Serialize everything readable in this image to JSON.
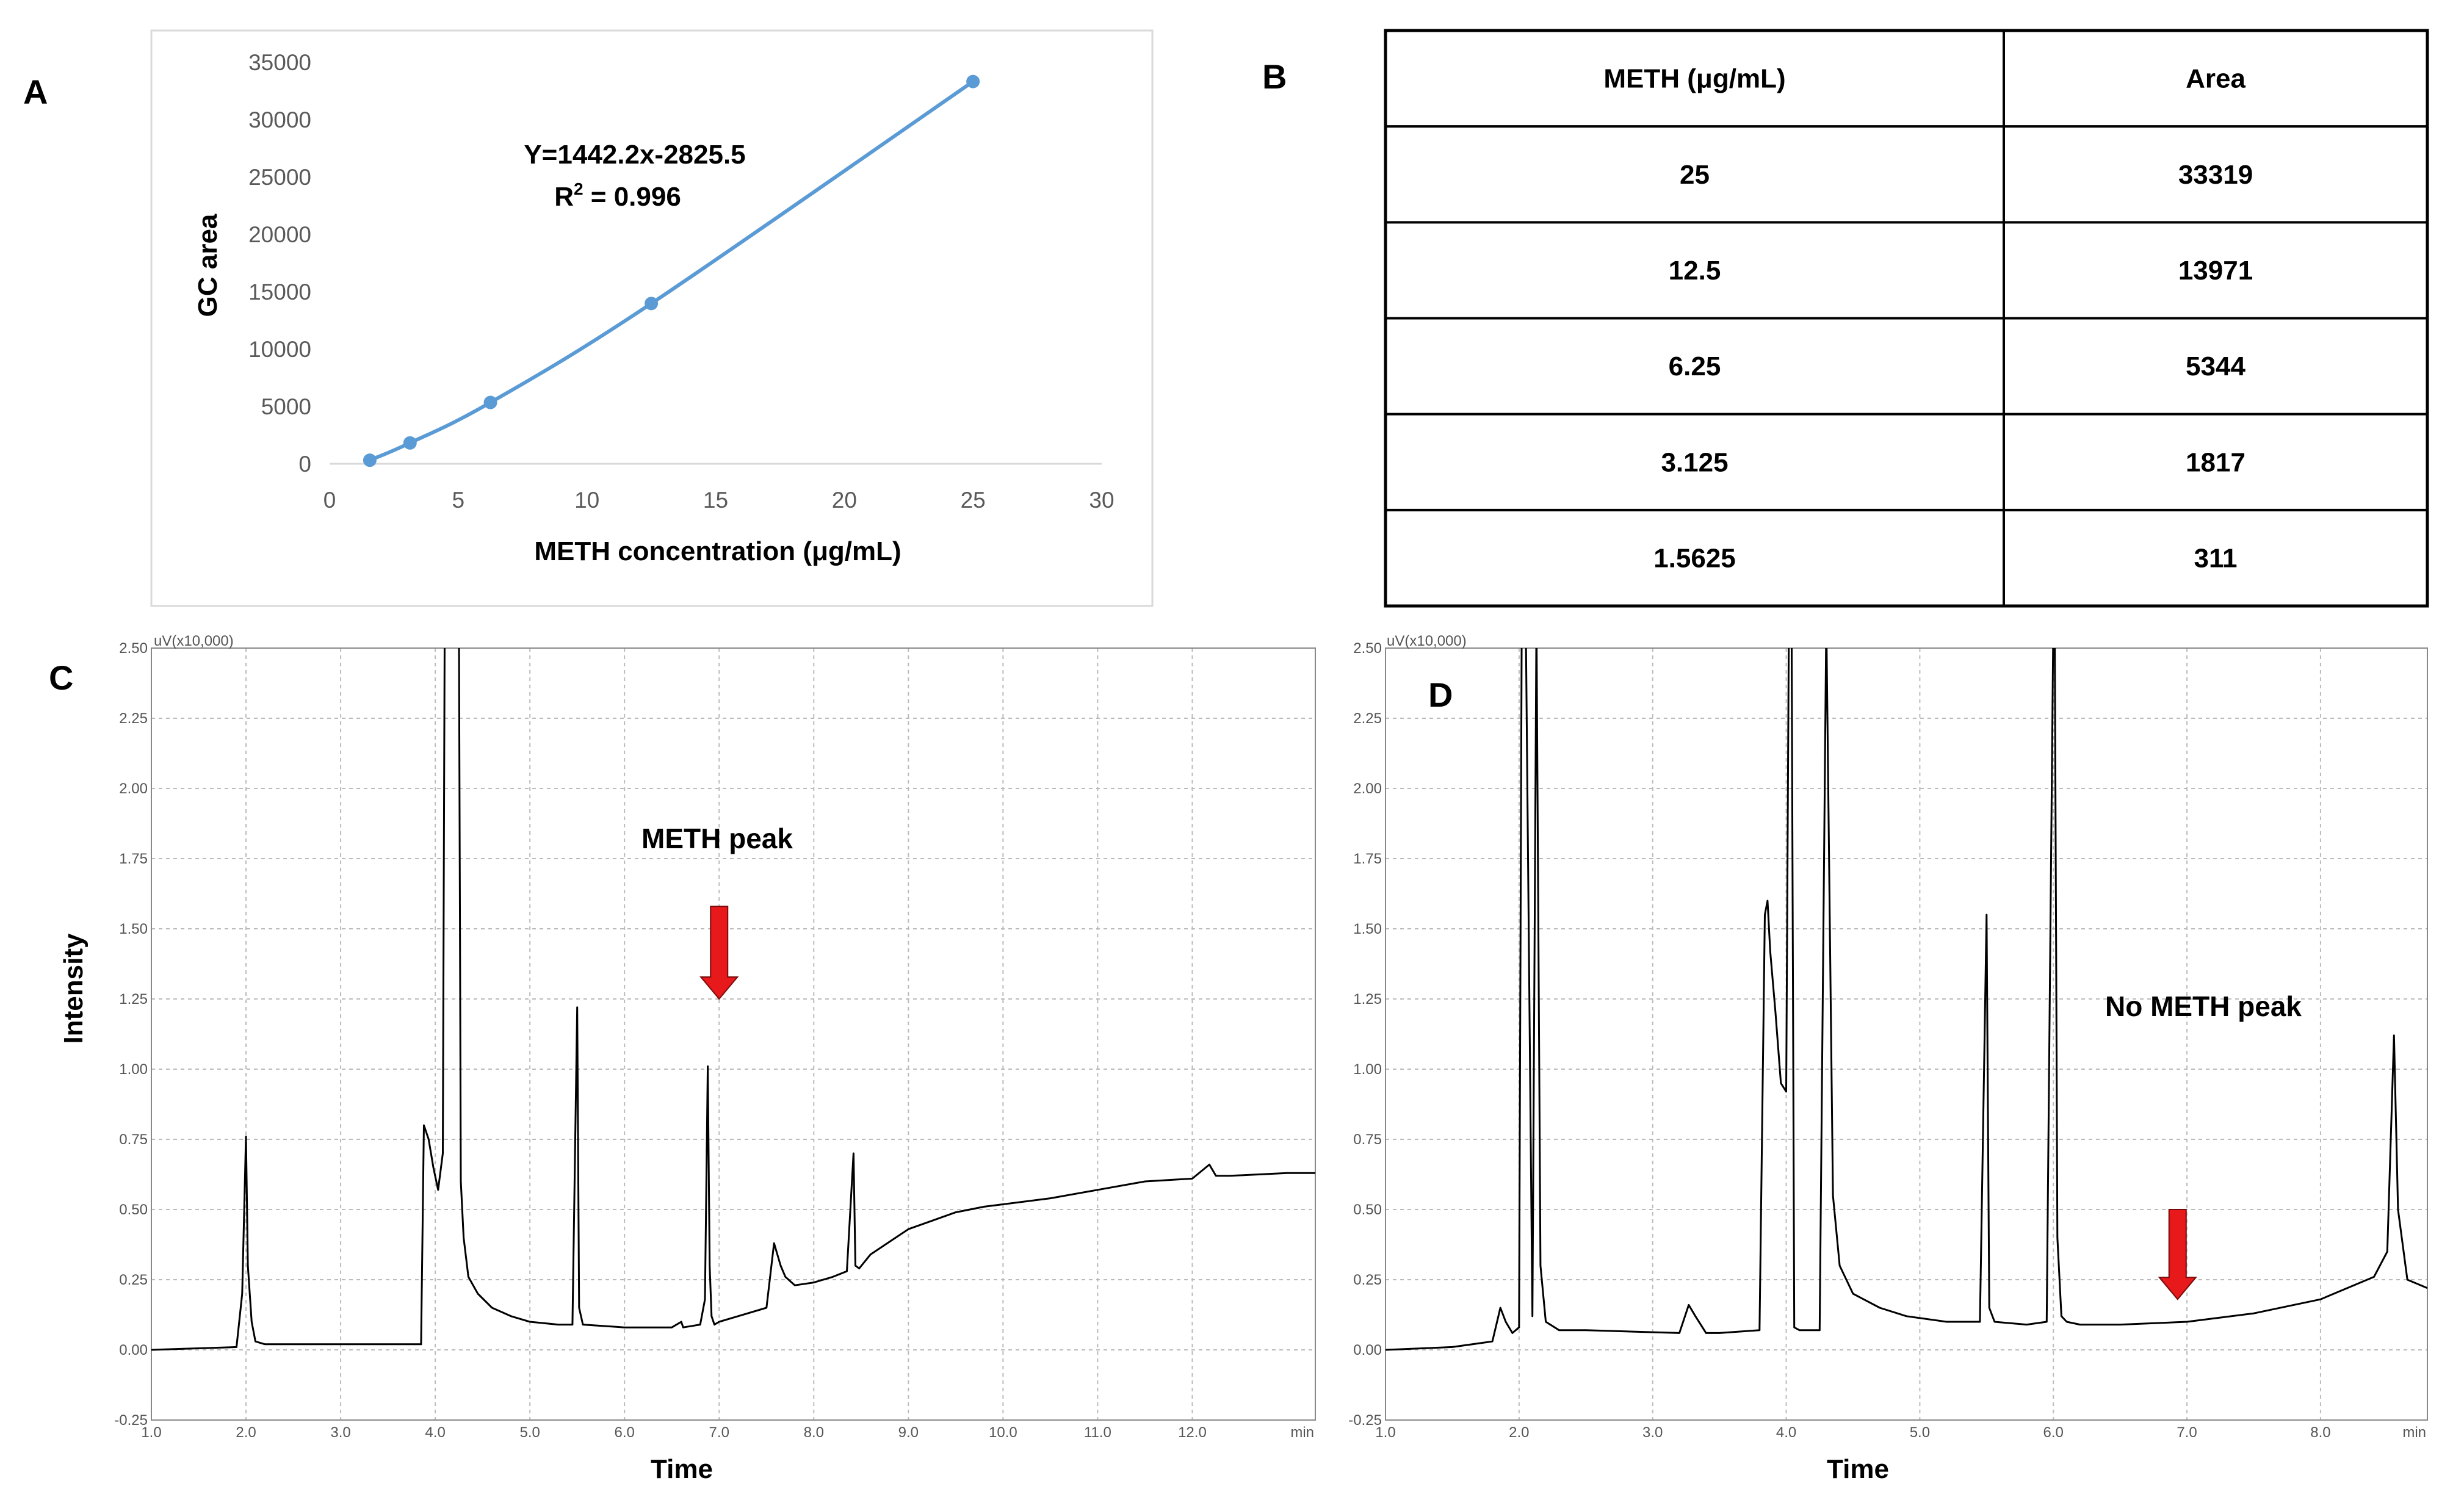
{
  "panel_labels": {
    "a": "A",
    "b": "B",
    "c": "C",
    "d": "D"
  },
  "chart_data": [
    {
      "id": "A",
      "type": "scatter",
      "title": "",
      "xlabel": "METH concentration (μg/mL)",
      "ylabel": "GC area",
      "xlim": [
        0,
        30
      ],
      "ylim": [
        0,
        35000
      ],
      "xticks": [
        0,
        5,
        10,
        15,
        20,
        25,
        30
      ],
      "yticks": [
        0,
        5000,
        10000,
        15000,
        20000,
        25000,
        30000,
        35000
      ],
      "x": [
        1.5625,
        3.125,
        6.25,
        12.5,
        25
      ],
      "y": [
        311,
        1817,
        5344,
        13971,
        33319
      ],
      "trendline": "polynomial",
      "equation": "Y=1442.2x-2825.5",
      "r2_prefix": "R",
      "r2_sup": "2",
      "r2_value": " = 0.996",
      "series_color": "#5B9BD5"
    },
    {
      "id": "B",
      "type": "table",
      "columns": [
        "METH (μg/mL)",
        "Area"
      ],
      "rows": [
        [
          "25",
          "33319"
        ],
        [
          "12.5",
          "13971"
        ],
        [
          "6.25",
          "5344"
        ],
        [
          "3.125",
          "1817"
        ],
        [
          "1.5625",
          "311"
        ]
      ]
    },
    {
      "id": "C",
      "type": "line",
      "unit_label": "uV(x10,000)",
      "xlabel": "Time",
      "ylabel": "Intensity",
      "x_unit": "min",
      "xlim": [
        1.0,
        13.3
      ],
      "ylim": [
        -0.25,
        2.5
      ],
      "xticks": [
        "1.0",
        "2.0",
        "3.0",
        "4.0",
        "5.0",
        "6.0",
        "7.0",
        "8.0",
        "9.0",
        "10.0",
        "11.0",
        "12.0"
      ],
      "yticks": [
        "-0.25",
        "0.00",
        "0.25",
        "0.50",
        "0.75",
        "1.00",
        "1.25",
        "1.50",
        "1.75",
        "2.00",
        "2.25",
        "2.50"
      ],
      "annotation": "METH peak",
      "arrow_at": {
        "x": 7.0,
        "y_top": 1.58,
        "y_bottom": 1.25
      },
      "series": [
        {
          "name": "chromatogram",
          "x": [
            1.0,
            1.9,
            1.96,
            2.0,
            2.02,
            2.06,
            2.1,
            2.2,
            2.3,
            3.85,
            3.88,
            3.93,
            3.98,
            4.03,
            4.08,
            4.1,
            4.13,
            4.2,
            4.25,
            4.27,
            4.3,
            4.35,
            4.45,
            4.6,
            4.8,
            5.0,
            5.3,
            5.45,
            5.5,
            5.52,
            5.56,
            6.0,
            6.5,
            6.6,
            6.62,
            6.8,
            6.85,
            6.88,
            6.9,
            6.92,
            6.95,
            7.0,
            7.2,
            7.5,
            7.58,
            7.65,
            7.7,
            7.8,
            8.0,
            8.2,
            8.35,
            8.42,
            8.44,
            8.48,
            8.6,
            9.0,
            9.5,
            9.8,
            10.5,
            11.0,
            11.5,
            12.0,
            12.18,
            12.25,
            12.4,
            13.0,
            13.3
          ],
          "y": [
            0.0,
            0.01,
            0.2,
            0.76,
            0.3,
            0.1,
            0.03,
            0.02,
            0.02,
            0.02,
            0.8,
            0.75,
            0.65,
            0.57,
            0.7,
            2.6,
            2.6,
            2.6,
            2.6,
            0.6,
            0.4,
            0.26,
            0.2,
            0.15,
            0.12,
            0.1,
            0.09,
            0.09,
            1.22,
            0.15,
            0.09,
            0.08,
            0.08,
            0.1,
            0.08,
            0.09,
            0.18,
            1.01,
            0.3,
            0.12,
            0.09,
            0.1,
            0.12,
            0.15,
            0.38,
            0.3,
            0.26,
            0.23,
            0.24,
            0.26,
            0.28,
            0.7,
            0.3,
            0.29,
            0.34,
            0.43,
            0.49,
            0.51,
            0.54,
            0.57,
            0.6,
            0.61,
            0.66,
            0.62,
            0.62,
            0.63,
            0.63
          ]
        }
      ],
      "colors": {
        "line": "#000000",
        "arrow": "#E8191B",
        "grid": "#bbbbbb"
      }
    },
    {
      "id": "D",
      "type": "line",
      "unit_label": "uV(x10,000)",
      "xlabel": "Time",
      "ylabel": "",
      "x_unit": "min",
      "xlim": [
        1.0,
        8.8
      ],
      "ylim": [
        -0.25,
        2.5
      ],
      "xticks": [
        "1.0",
        "2.0",
        "3.0",
        "4.0",
        "5.0",
        "6.0",
        "7.0",
        "8.0"
      ],
      "yticks": [
        "-0.25",
        "0.00",
        "0.25",
        "0.50",
        "0.75",
        "1.00",
        "1.25",
        "1.50",
        "1.75",
        "2.00",
        "2.25",
        "2.50"
      ],
      "annotation": "No METH peak",
      "arrow_at": {
        "x": 6.93,
        "y_top": 0.5,
        "y_bottom": 0.18
      },
      "series": [
        {
          "name": "chromatogram",
          "x": [
            1.0,
            1.5,
            1.8,
            1.86,
            1.9,
            1.95,
            2.0,
            2.02,
            2.05,
            2.1,
            2.13,
            2.16,
            2.2,
            2.3,
            2.5,
            3.2,
            3.27,
            3.32,
            3.4,
            3.5,
            3.8,
            3.84,
            3.86,
            3.88,
            3.92,
            3.96,
            4.0,
            4.02,
            4.04,
            4.06,
            4.1,
            4.15,
            4.25,
            4.3,
            4.35,
            4.4,
            4.5,
            4.7,
            4.9,
            5.2,
            5.45,
            5.5,
            5.52,
            5.56,
            5.8,
            5.95,
            6.0,
            6.01,
            6.03,
            6.06,
            6.1,
            6.2,
            6.5,
            7.0,
            7.5,
            8.0,
            8.4,
            8.5,
            8.55,
            8.58,
            8.65,
            8.8
          ],
          "y": [
            0.0,
            0.01,
            0.03,
            0.15,
            0.1,
            0.06,
            0.08,
            2.6,
            2.6,
            0.12,
            2.6,
            0.3,
            0.1,
            0.07,
            0.07,
            0.06,
            0.16,
            0.12,
            0.06,
            0.06,
            0.07,
            1.55,
            1.6,
            1.42,
            1.2,
            0.95,
            0.92,
            2.6,
            2.6,
            0.08,
            0.07,
            0.07,
            0.07,
            2.6,
            0.55,
            0.3,
            0.2,
            0.15,
            0.12,
            0.1,
            0.1,
            1.55,
            0.15,
            0.1,
            0.09,
            0.1,
            2.6,
            2.6,
            0.4,
            0.12,
            0.1,
            0.09,
            0.09,
            0.1,
            0.13,
            0.18,
            0.26,
            0.35,
            1.12,
            0.5,
            0.25,
            0.22
          ]
        }
      ],
      "colors": {
        "line": "#000000",
        "arrow": "#E8191B",
        "grid": "#bbbbbb"
      }
    }
  ]
}
